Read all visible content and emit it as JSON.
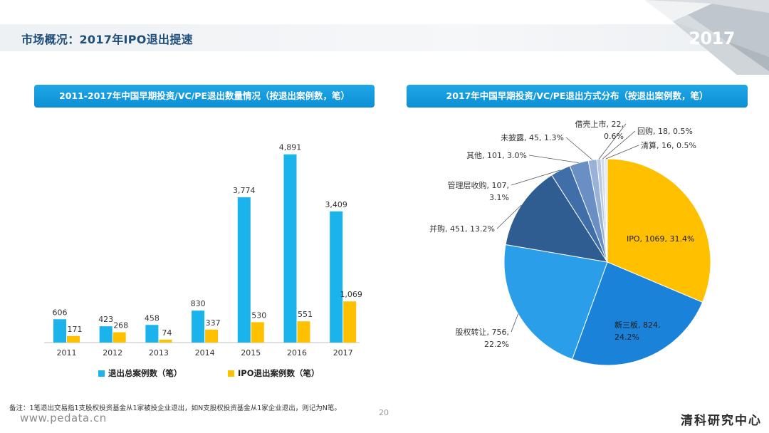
{
  "page": {
    "title": "市场概况：2017年IPO退出提速",
    "year_badge": "2017",
    "footnote": "备注：1笔退出交易指1支股权投资基金从1家被投企业退出，如N支股权投资基金从1家企业退出，则记为N笔。",
    "page_number": "20",
    "website": "www.pedata.cn",
    "brand": "清科研究中心"
  },
  "colors": {
    "total_bar": "#1ab3ec",
    "ipo_bar": "#ffc000",
    "header": "#0d8fd6"
  },
  "chart_data": [
    {
      "type": "bar",
      "title": "2011-2017年中国早期投资/VC/PE退出数量情况（按退出案例数，笔）",
      "categories": [
        "2011",
        "2012",
        "2013",
        "2014",
        "2015",
        "2016",
        "2017"
      ],
      "series": [
        {
          "name": "退出总案例数（笔）",
          "values": [
            606,
            423,
            458,
            830,
            3774,
            4891,
            3409
          ],
          "labels": [
            "606",
            "423",
            "458",
            "830",
            "3,774",
            "4,891",
            "3,409"
          ]
        },
        {
          "name": "IPO退出案例数（笔）",
          "values": [
            171,
            268,
            74,
            337,
            530,
            551,
            1069
          ],
          "labels": [
            "171",
            "268",
            "74",
            "337",
            "530",
            "551",
            "1,069"
          ]
        }
      ],
      "ylim": [
        0,
        5200
      ],
      "grid": false,
      "legend": "bottom"
    },
    {
      "type": "pie",
      "title": "2017年中国早期投资/VC/PE退出方式分布（按退出案例数，笔）",
      "slices": [
        {
          "name": "IPO",
          "value": 1069,
          "pct": "31.4%",
          "color": "#ffc000",
          "label": [
            "IPO, 1069, 31.4%"
          ]
        },
        {
          "name": "新三板",
          "value": 824,
          "pct": "24.2%",
          "color": "#1a82d9",
          "label": [
            "新三板, 824,",
            "24.2%"
          ]
        },
        {
          "name": "股权转让",
          "value": 756,
          "pct": "22.2%",
          "color": "#2a9ee8",
          "label": [
            "股权转让, 756,",
            "22.2%"
          ]
        },
        {
          "name": "并购",
          "value": 451,
          "pct": "13.2%",
          "color": "#2f5d91",
          "label": [
            "并购, 451, 13.2%"
          ]
        },
        {
          "name": "管理层收购",
          "value": 107,
          "pct": "3.1%",
          "color": "#3f6ea8",
          "label": [
            "管理层收购, 107,",
            "3.1%"
          ]
        },
        {
          "name": "其他",
          "value": 101,
          "pct": "3.0%",
          "color": "#6a8fc4",
          "label": [
            "其他, 101, 3.0%"
          ]
        },
        {
          "name": "未披露",
          "value": 45,
          "pct": "1.3%",
          "color": "#98b2d8",
          "label": [
            "未披露, 45, 1.3%"
          ]
        },
        {
          "name": "借壳上市",
          "value": 22,
          "pct": "0.6%",
          "color": "#b9c9e3",
          "label": [
            "借壳上市, 22,",
            "0.6%"
          ]
        },
        {
          "name": "回购",
          "value": 18,
          "pct": "0.5%",
          "color": "#cfdbee",
          "label": [
            "回购, 18, 0.5%"
          ]
        },
        {
          "name": "清算",
          "value": 16,
          "pct": "0.5%",
          "color": "#e3eaf5",
          "label": [
            "清算, 16, 0.5%"
          ]
        }
      ]
    }
  ]
}
